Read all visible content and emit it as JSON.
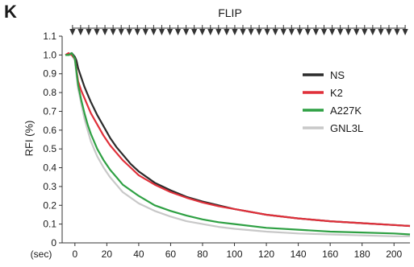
{
  "panel_label": "K",
  "flip_label": "FLIP",
  "chart_data": {
    "type": "line",
    "title": "",
    "xlabel": "",
    "ylabel": "RFI (%)",
    "x_unit_label": "(sec)",
    "xlim": [
      -8,
      210
    ],
    "ylim": [
      0,
      1.1
    ],
    "x_ticks": [
      0,
      20,
      40,
      60,
      80,
      100,
      120,
      140,
      160,
      180,
      200
    ],
    "y_ticks": [
      "0",
      "0.1",
      "0.2",
      "0.3",
      "0.4",
      "0.5",
      "0.6",
      "0.7",
      "0.8",
      "0.9",
      "1.0",
      "1.1"
    ],
    "grid": false,
    "legend_position": "top-right",
    "bleach_marker_count": 42,
    "series": [
      {
        "name": "NS",
        "color": "#2b2b2b",
        "x": [
          -6,
          -4,
          -2,
          0,
          1,
          2,
          4,
          6,
          8,
          10,
          14,
          18,
          22,
          26,
          30,
          35,
          40,
          50,
          60,
          70,
          80,
          90,
          100,
          120,
          140,
          160,
          180,
          200,
          210
        ],
        "y": [
          1.0,
          1.0,
          1.01,
          0.99,
          0.97,
          0.93,
          0.88,
          0.83,
          0.79,
          0.75,
          0.68,
          0.62,
          0.56,
          0.51,
          0.47,
          0.42,
          0.38,
          0.32,
          0.28,
          0.245,
          0.22,
          0.2,
          0.18,
          0.15,
          0.13,
          0.115,
          0.105,
          0.095,
          0.09
        ]
      },
      {
        "name": "K2",
        "color": "#e0303a",
        "x": [
          -6,
          -4,
          -2,
          0,
          1,
          2,
          4,
          6,
          8,
          10,
          14,
          18,
          22,
          26,
          30,
          35,
          40,
          50,
          60,
          70,
          80,
          90,
          100,
          120,
          140,
          160,
          180,
          200,
          210
        ],
        "y": [
          1.0,
          1.01,
          1.0,
          0.98,
          0.92,
          0.86,
          0.81,
          0.77,
          0.73,
          0.69,
          0.63,
          0.57,
          0.52,
          0.48,
          0.44,
          0.4,
          0.36,
          0.31,
          0.27,
          0.24,
          0.215,
          0.195,
          0.18,
          0.15,
          0.13,
          0.115,
          0.105,
          0.095,
          0.09
        ]
      },
      {
        "name": "A227K",
        "color": "#2ea043",
        "x": [
          -6,
          -4,
          -2,
          0,
          1,
          2,
          4,
          6,
          8,
          10,
          14,
          18,
          22,
          26,
          30,
          35,
          40,
          50,
          60,
          70,
          80,
          90,
          100,
          120,
          140,
          160,
          180,
          200,
          210
        ],
        "y": [
          1.0,
          1.0,
          1.01,
          0.98,
          0.91,
          0.84,
          0.76,
          0.69,
          0.63,
          0.58,
          0.5,
          0.44,
          0.39,
          0.35,
          0.31,
          0.28,
          0.25,
          0.2,
          0.17,
          0.145,
          0.125,
          0.11,
          0.1,
          0.08,
          0.07,
          0.06,
          0.055,
          0.05,
          0.045
        ]
      },
      {
        "name": "GNL3L",
        "color": "#c8c8c8",
        "x": [
          -6,
          -4,
          -2,
          0,
          1,
          2,
          4,
          6,
          8,
          10,
          14,
          18,
          22,
          26,
          30,
          35,
          40,
          50,
          60,
          70,
          80,
          90,
          100,
          120,
          140,
          160,
          180,
          200,
          210
        ],
        "y": [
          1.0,
          1.0,
          1.0,
          0.97,
          0.89,
          0.82,
          0.74,
          0.66,
          0.6,
          0.54,
          0.46,
          0.4,
          0.35,
          0.31,
          0.27,
          0.24,
          0.21,
          0.17,
          0.14,
          0.115,
          0.1,
          0.085,
          0.075,
          0.06,
          0.05,
          0.045,
          0.04,
          0.035,
          0.035
        ]
      }
    ]
  }
}
